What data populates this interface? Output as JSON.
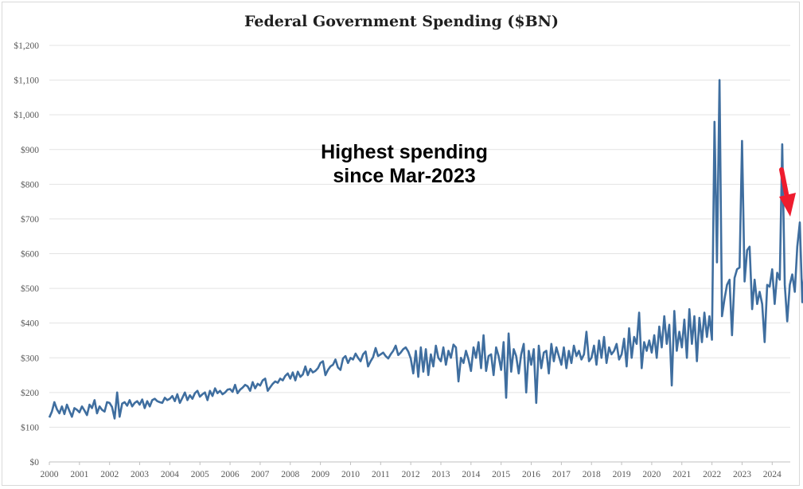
{
  "chart_data": {
    "type": "line",
    "title": "Federal Government Spending ($BN)",
    "xlabel": "",
    "ylabel": "",
    "ylim": [
      0,
      1200
    ],
    "y_ticks": [
      "$0",
      "$100",
      "$200",
      "$300",
      "$400",
      "$500",
      "$600",
      "$700",
      "$800",
      "$900",
      "$1,000",
      "$1,100",
      "$1,200"
    ],
    "x_ticks": [
      "2000",
      "2001",
      "2002",
      "2003",
      "2004",
      "2005",
      "2006",
      "2007",
      "2008",
      "2009",
      "2010",
      "2011",
      "2012",
      "2013",
      "2014",
      "2015",
      "2016",
      "2017",
      "2018",
      "2019",
      "2020",
      "2021",
      "2022",
      "2023",
      "2024"
    ],
    "grid": true,
    "line_color": "#3f6e9f",
    "annotation": {
      "line1": "Highest spending",
      "line2": "since Mar-2023",
      "arrow_color": "#ee1c2e"
    },
    "series": [
      {
        "x_start": "2000-01",
        "frequency": "monthly",
        "values": [
          128,
          145,
          172,
          152,
          140,
          160,
          138,
          165,
          147,
          130,
          155,
          150,
          143,
          160,
          148,
          135,
          165,
          155,
          178,
          140,
          160,
          150,
          145,
          172,
          170,
          158,
          125,
          200,
          130,
          168,
          172,
          162,
          178,
          160,
          170,
          175,
          165,
          180,
          155,
          175,
          160,
          178,
          182,
          175,
          172,
          170,
          185,
          178,
          182,
          190,
          175,
          195,
          170,
          185,
          200,
          178,
          192,
          182,
          198,
          205,
          188,
          195,
          200,
          178,
          205,
          190,
          212,
          198,
          205,
          195,
          200,
          208,
          210,
          202,
          222,
          198,
          208,
          214,
          222,
          218,
          205,
          230,
          212,
          225,
          220,
          235,
          240,
          205,
          215,
          225,
          232,
          228,
          240,
          235,
          248,
          255,
          240,
          258,
          235,
          260,
          245,
          252,
          275,
          250,
          268,
          258,
          262,
          270,
          285,
          290,
          250,
          265,
          275,
          280,
          295,
          272,
          265,
          298,
          305,
          285,
          300,
          295,
          312,
          300,
          290,
          310,
          318,
          275,
          290,
          302,
          328,
          305,
          310,
          315,
          305,
          298,
          310,
          320,
          335,
          308,
          315,
          325,
          330,
          318
        ]
      }
    ]
  }
}
